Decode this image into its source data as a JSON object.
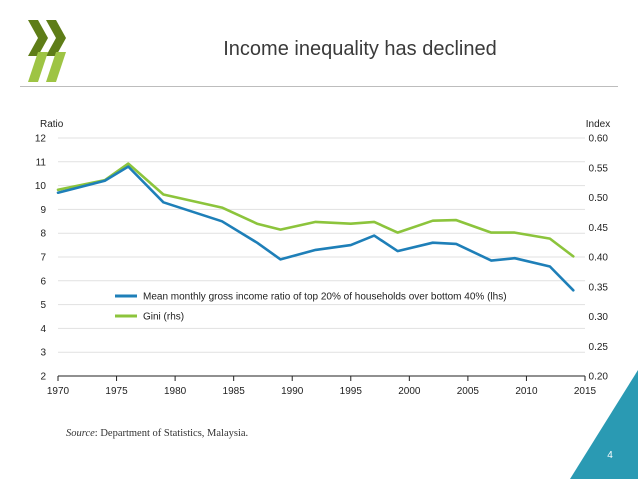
{
  "slide": {
    "title": "Income inequality has declined",
    "page_number": "4",
    "source_label": "Source",
    "source_text": ": Department of Statistics, Malaysia."
  },
  "colors": {
    "logo_dark": "#5e7d17",
    "logo_light": "#9ec444",
    "corner": "#2a9ab3",
    "series_ratio": "#1e7fb8",
    "series_gini": "#8cc43c",
    "axis": "#222222"
  },
  "chart_data": {
    "type": "line",
    "title": "",
    "xlabel": "",
    "ylabel_left": "Ratio",
    "ylabel_right": "Index",
    "xlim": [
      1970,
      2015
    ],
    "ylim_left": [
      2,
      12
    ],
    "ylim_right": [
      0.2,
      0.6
    ],
    "x_ticks": [
      "1970",
      "1975",
      "1980",
      "1985",
      "1990",
      "1995",
      "2000",
      "2005",
      "2010",
      "2015"
    ],
    "y_left_ticks": [
      "2",
      "3",
      "4",
      "5",
      "6",
      "7",
      "8",
      "9",
      "10",
      "11",
      "12"
    ],
    "y_right_ticks": [
      "0.20",
      "0.25",
      "0.30",
      "0.35",
      "0.40",
      "0.45",
      "0.50",
      "0.55",
      "0.60"
    ],
    "grid": true,
    "legend_position": "bottom-left",
    "series": [
      {
        "name": "Mean monthly gross income ratio of top 20% of households over bottom 40% (lhs)",
        "axis": "left",
        "x": [
          1970,
          1974,
          1976,
          1979,
          1984,
          1987,
          1989,
          1992,
          1995,
          1997,
          1999,
          2002,
          2004,
          2007,
          2009,
          2012,
          2014
        ],
        "values": [
          9.7,
          10.2,
          10.8,
          9.3,
          8.5,
          7.6,
          6.9,
          7.3,
          7.5,
          7.9,
          7.25,
          7.6,
          7.55,
          6.85,
          6.95,
          6.6,
          5.6
        ]
      },
      {
        "name": "Gini (rhs)",
        "axis": "right",
        "x": [
          1970,
          1974,
          1976,
          1979,
          1984,
          1987,
          1989,
          1992,
          1995,
          1997,
          1999,
          2002,
          2004,
          2007,
          2009,
          2012,
          2014
        ],
        "values": [
          0.513,
          0.529,
          0.557,
          0.505,
          0.483,
          0.456,
          0.446,
          0.459,
          0.456,
          0.459,
          0.441,
          0.461,
          0.462,
          0.441,
          0.441,
          0.431,
          0.401
        ]
      }
    ]
  }
}
